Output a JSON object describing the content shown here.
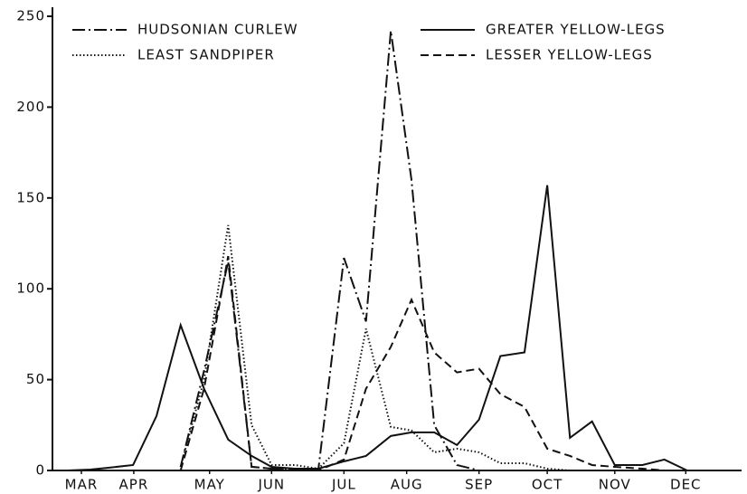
{
  "chart_data": {
    "type": "line",
    "x": [
      0.22,
      0.55,
      0.81,
      1.17,
      1.51,
      1.86,
      2.2,
      2.55,
      2.89,
      3.18,
      3.52,
      3.86,
      4.23,
      4.55,
      4.91,
      5.21,
      5.54,
      5.87,
      6.19,
      6.5,
      6.85,
      7.18,
      7.51,
      7.83,
      8.16,
      8.56,
      8.88,
      9.21
    ],
    "series": [
      {
        "name": "HUDSONIAN CURLEW",
        "color": "#111111",
        "style": "dash-dot",
        "values": [
          null,
          null,
          null,
          null,
          null,
          2,
          55,
          115,
          2,
          1,
          1,
          1,
          117,
          82,
          242,
          160,
          25,
          3,
          0,
          null,
          null,
          null,
          null,
          null,
          null,
          null,
          null,
          null
        ]
      },
      {
        "name": "GREATER YELLOW-LEGS",
        "color": "#111111",
        "style": "solid",
        "values": [
          0,
          0.5,
          1.5,
          3,
          30,
          80,
          45,
          17,
          8,
          2,
          1,
          1,
          5,
          8,
          19,
          21,
          21,
          14,
          28,
          63,
          65,
          157,
          18,
          27,
          3,
          3,
          6,
          0
        ]
      },
      {
        "name": "LEAST SANDPIPER",
        "color": "#111111",
        "style": "dotted",
        "values": [
          null,
          null,
          null,
          null,
          null,
          2,
          50,
          135,
          25,
          3,
          3,
          1,
          15,
          78,
          24,
          22,
          10,
          12,
          10,
          4,
          4,
          1,
          0,
          null,
          null,
          null,
          null,
          null
        ]
      },
      {
        "name": "LESSER YELLOW-LEGS",
        "color": "#111111",
        "style": "dashed",
        "values": [
          null,
          null,
          null,
          null,
          null,
          0,
          45,
          118,
          2,
          1,
          1,
          0,
          6,
          45,
          68,
          94,
          65,
          54,
          56,
          42,
          35,
          12,
          8,
          3,
          2,
          1,
          0,
          null
        ]
      }
    ],
    "xlim": [
      0,
      10
    ],
    "xticks": [
      {
        "value": 0.42,
        "label": "MAR"
      },
      {
        "value": 1.18,
        "label": "APR"
      },
      {
        "value": 2.28,
        "label": "MAY"
      },
      {
        "value": 3.18,
        "label": "JUN"
      },
      {
        "value": 4.23,
        "label": "JUL"
      },
      {
        "value": 5.14,
        "label": "AUG"
      },
      {
        "value": 6.19,
        "label": "SEP"
      },
      {
        "value": 7.18,
        "label": "OCT"
      },
      {
        "value": 8.16,
        "label": "NOV"
      },
      {
        "value": 9.19,
        "label": "DEC"
      }
    ],
    "ylim": [
      0,
      250
    ],
    "yticks": [
      0,
      50,
      100,
      150,
      200,
      250
    ],
    "grid": false
  }
}
